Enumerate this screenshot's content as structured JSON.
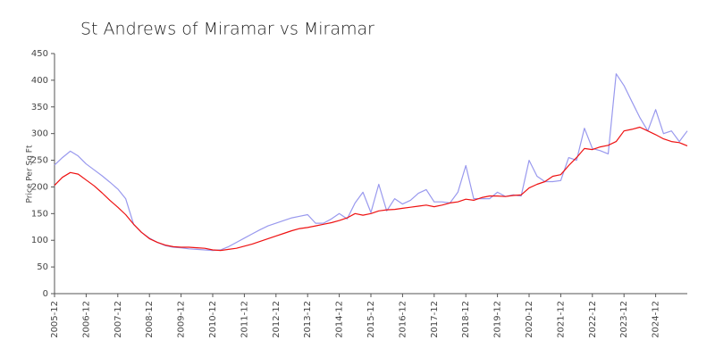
{
  "chart_data": {
    "type": "line",
    "title": "St Andrews of Miramar vs Miramar",
    "y_label": "Price Per Sq Ft",
    "categories": [
      "2005-12",
      null,
      null,
      null,
      "2006-12",
      null,
      null,
      null,
      "2007-12",
      null,
      null,
      null,
      "2008-12",
      null,
      null,
      null,
      "2009-12",
      null,
      null,
      null,
      "2010-12",
      null,
      null,
      null,
      "2011-12",
      null,
      null,
      null,
      "2012-12",
      null,
      null,
      null,
      "2013-12",
      null,
      null,
      null,
      "2014-12",
      null,
      null,
      null,
      "2015-12",
      null,
      null,
      null,
      "2016-12",
      null,
      null,
      null,
      "2017-12",
      null,
      null,
      null,
      "2018-12",
      null,
      null,
      null,
      "2019-12",
      null,
      null,
      null,
      "2020-12",
      null,
      null,
      null,
      "2021-12",
      null,
      null,
      null,
      "2022-12",
      null,
      null,
      null,
      "2023-12",
      null,
      null,
      null,
      "2024-12",
      null,
      null,
      null,
      null
    ],
    "series": [
      {
        "color": "#9999ee",
        "values": [
          241,
          255,
          267,
          258,
          243,
          232,
          221,
          209,
          196,
          178,
          130,
          115,
          104,
          96,
          90,
          87,
          86,
          84,
          83,
          82,
          81,
          82,
          88,
          96,
          104,
          112,
          120,
          127,
          132,
          137,
          142,
          145,
          148,
          132,
          132,
          140,
          150,
          140,
          170,
          190,
          152,
          205,
          155,
          178,
          168,
          175,
          188,
          195,
          172,
          172,
          170,
          190,
          240,
          178,
          178,
          178,
          190,
          182,
          185,
          183,
          250,
          220,
          210,
          210,
          212,
          255,
          250,
          310,
          272,
          268,
          262,
          412,
          390,
          360,
          330,
          305,
          345,
          300,
          305,
          285,
          305
        ]
      },
      {
        "color": "#ee1111",
        "values": [
          203,
          218,
          227,
          224,
          213,
          202,
          189,
          175,
          162,
          148,
          130,
          115,
          103,
          96,
          91,
          88,
          87,
          87,
          86,
          85,
          82,
          81,
          83,
          85,
          89,
          93,
          98,
          103,
          108,
          113,
          118,
          122,
          124,
          127,
          130,
          133,
          137,
          142,
          150,
          147,
          150,
          155,
          157,
          158,
          160,
          162,
          164,
          166,
          163,
          166,
          170,
          172,
          177,
          175,
          180,
          183,
          183,
          182,
          184,
          185,
          198,
          205,
          210,
          220,
          223,
          240,
          255,
          272,
          270,
          275,
          278,
          285,
          305,
          308,
          312,
          305,
          298,
          290,
          285,
          283,
          277
        ]
      }
    ],
    "ylim": [
      0,
      450
    ],
    "yticks": [
      0,
      50,
      100,
      150,
      200,
      250,
      300,
      350,
      400,
      450
    ],
    "grid": false
  }
}
